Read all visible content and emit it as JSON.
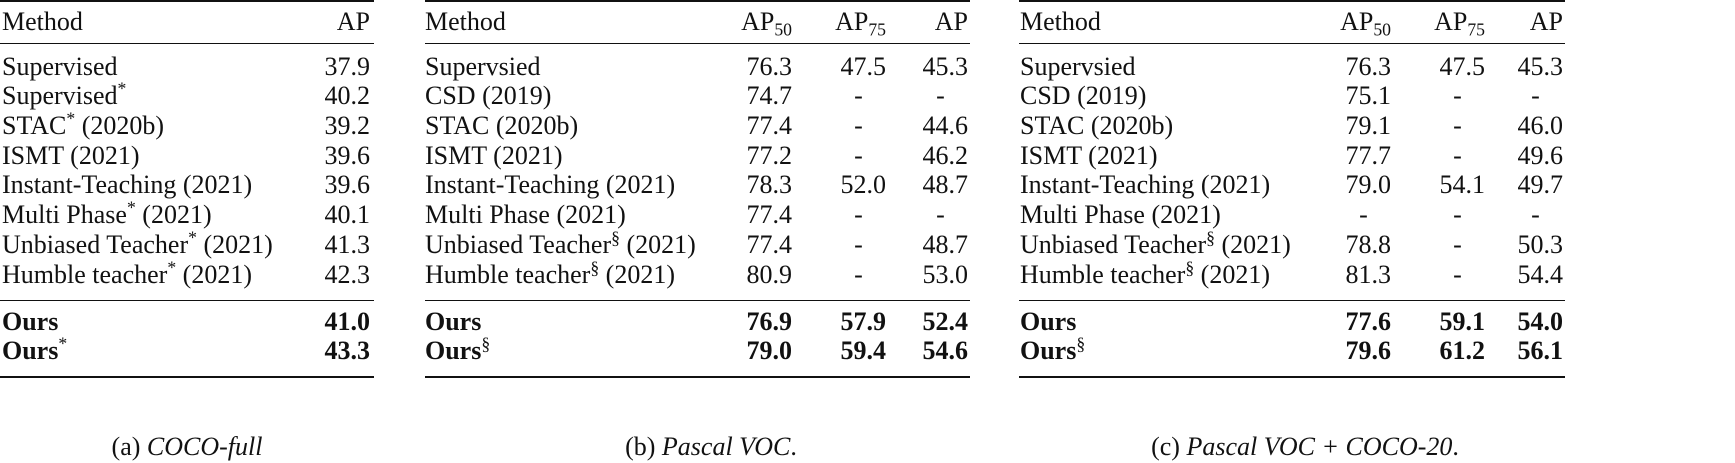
{
  "tables": [
    {
      "caption_prefix": "(a)",
      "caption_title": "COCO-full",
      "caption_suffix": "",
      "headers": [
        "Method",
        "AP"
      ],
      "rows": [
        {
          "method": "Supervised",
          "sym": "",
          "year": "",
          "vals": [
            "37.9"
          ]
        },
        {
          "method": "Supervised",
          "sym": "*",
          "year": "",
          "vals": [
            "40.2"
          ]
        },
        {
          "method": "STAC",
          "sym": "*",
          "year": "(2020b)",
          "vals": [
            "39.2"
          ]
        },
        {
          "method": "ISMT",
          "sym": "",
          "year": "(2021)",
          "vals": [
            "39.6"
          ]
        },
        {
          "method": "Instant-Teaching",
          "sym": "",
          "year": "(2021)",
          "vals": [
            "39.6"
          ]
        },
        {
          "method": "Multi Phase",
          "sym": "*",
          "year": "(2021)",
          "vals": [
            "40.1"
          ]
        },
        {
          "method": "Unbiased Teacher",
          "sym": "*",
          "year": "(2021)",
          "vals": [
            "41.3"
          ]
        },
        {
          "method": "Humble teacher",
          "sym": "*",
          "year": "(2021)",
          "vals": [
            "42.3"
          ]
        }
      ],
      "ours": [
        {
          "method": "Ours",
          "sym": "",
          "vals": [
            "41.0"
          ]
        },
        {
          "method": "Ours",
          "sym": "*",
          "vals": [
            "43.3"
          ]
        }
      ]
    },
    {
      "caption_prefix": "(b)",
      "caption_title": "Pascal VOC",
      "caption_suffix": ".",
      "headers": [
        "Method",
        "AP",
        "AP",
        "AP"
      ],
      "header_subs": [
        "",
        "50",
        "75",
        ""
      ],
      "rows": [
        {
          "method": "Supervsied",
          "sym": "",
          "year": "",
          "vals": [
            "76.3",
            "47.5",
            "45.3"
          ]
        },
        {
          "method": "CSD",
          "sym": "",
          "year": "(2019)",
          "vals": [
            "74.7",
            "-",
            "-"
          ]
        },
        {
          "method": "STAC",
          "sym": "",
          "year": "(2020b)",
          "vals": [
            "77.4",
            "-",
            "44.6"
          ]
        },
        {
          "method": "ISMT",
          "sym": "",
          "year": "(2021)",
          "vals": [
            "77.2",
            "-",
            "46.2"
          ]
        },
        {
          "method": "Instant-Teaching",
          "sym": "",
          "year": "(2021)",
          "vals": [
            "78.3",
            "52.0",
            "48.7"
          ]
        },
        {
          "method": "Multi Phase",
          "sym": "",
          "year": "(2021)",
          "vals": [
            "77.4",
            "-",
            "-"
          ]
        },
        {
          "method": "Unbiased Teacher",
          "sym": "§",
          "year": "(2021)",
          "vals": [
            "77.4",
            "-",
            "48.7"
          ]
        },
        {
          "method": "Humble teacher",
          "sym": "§",
          "year": "(2021)",
          "vals": [
            "80.9",
            "-",
            "53.0"
          ]
        }
      ],
      "ours": [
        {
          "method": "Ours",
          "sym": "",
          "vals": [
            "76.9",
            "57.9",
            "52.4"
          ]
        },
        {
          "method": "Ours",
          "sym": "§",
          "vals": [
            "79.0",
            "59.4",
            "54.6"
          ]
        }
      ]
    },
    {
      "caption_prefix": "(c)",
      "caption_title": "Pascal VOC + COCO-20",
      "caption_suffix": ".",
      "headers": [
        "Method",
        "AP",
        "AP",
        "AP"
      ],
      "header_subs": [
        "",
        "50",
        "75",
        ""
      ],
      "rows": [
        {
          "method": "Supervsied",
          "sym": "",
          "year": "",
          "vals": [
            "76.3",
            "47.5",
            "45.3"
          ]
        },
        {
          "method": "CSD",
          "sym": "",
          "year": "(2019)",
          "vals": [
            "75.1",
            "-",
            "-"
          ]
        },
        {
          "method": "STAC",
          "sym": "",
          "year": "(2020b)",
          "vals": [
            "79.1",
            "-",
            "46.0"
          ]
        },
        {
          "method": "ISMT",
          "sym": "",
          "year": "(2021)",
          "vals": [
            "77.7",
            "-",
            "49.6"
          ]
        },
        {
          "method": "Instant-Teaching",
          "sym": "",
          "year": "(2021)",
          "vals": [
            "79.0",
            "54.1",
            "49.7"
          ]
        },
        {
          "method": "Multi Phase",
          "sym": "",
          "year": "(2021)",
          "vals": [
            "-",
            "-",
            "-"
          ]
        },
        {
          "method": "Unbiased Teacher",
          "sym": "§",
          "year": "(2021)",
          "vals": [
            "78.8",
            "-",
            "50.3"
          ]
        },
        {
          "method": "Humble teacher",
          "sym": "§",
          "year": "(2021)",
          "vals": [
            "81.3",
            "-",
            "54.4"
          ]
        }
      ],
      "ours": [
        {
          "method": "Ours",
          "sym": "",
          "vals": [
            "77.6",
            "59.1",
            "54.0"
          ]
        },
        {
          "method": "Ours",
          "sym": "§",
          "vals": [
            "79.6",
            "61.2",
            "56.1"
          ]
        }
      ]
    }
  ]
}
